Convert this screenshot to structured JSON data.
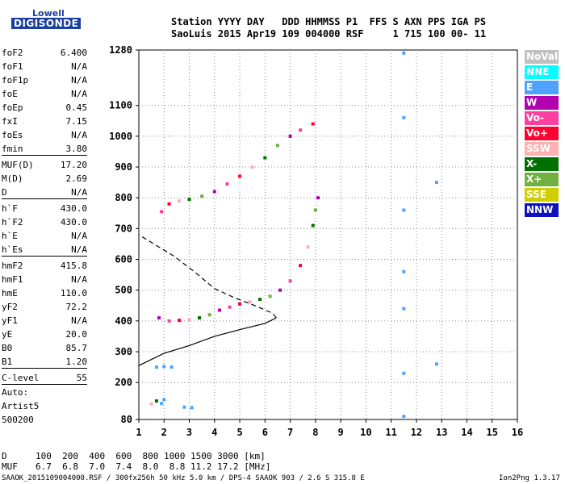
{
  "logo": {
    "line1": "Lowell",
    "line2": "DIGISONDE"
  },
  "header": {
    "line1": "Station YYYY DAY   DDD HHMMSS P1  FFS S AXN PPS IGA PS",
    "line2": "SaoLuis 2015 Apr19 109 004000 RSF     1 715 100 00- 11"
  },
  "params": [
    {
      "name": "foF2",
      "value": "6.400"
    },
    {
      "name": "foF1",
      "value": "N/A"
    },
    {
      "name": "foF1p",
      "value": "N/A"
    },
    {
      "name": "foE",
      "value": "N/A"
    },
    {
      "name": "foEp",
      "value": "0.45"
    },
    {
      "name": "fxI",
      "value": "7.15"
    },
    {
      "name": "foEs",
      "value": "N/A"
    },
    {
      "name": "fmin",
      "value": "3.80"
    },
    {
      "name": "MUF(D)",
      "value": "17.20"
    },
    {
      "name": "M(D)",
      "value": "2.69"
    },
    {
      "name": "D",
      "value": "N/A"
    },
    {
      "name": "h`F",
      "value": "430.0"
    },
    {
      "name": "h`F2",
      "value": "430.0"
    },
    {
      "name": "h`E",
      "value": "N/A"
    },
    {
      "name": "h`Es",
      "value": "N/A"
    },
    {
      "name": "hmF2",
      "value": "415.8"
    },
    {
      "name": "hmF1",
      "value": "N/A"
    },
    {
      "name": "hmE",
      "value": "110.0"
    },
    {
      "name": "yF2",
      "value": "72.2"
    },
    {
      "name": "yF1",
      "value": "N/A"
    },
    {
      "name": "yE",
      "value": "20.0"
    },
    {
      "name": "B0",
      "value": "85.7"
    },
    {
      "name": "B1",
      "value": "1.20"
    },
    {
      "name": "C-level",
      "value": "55"
    }
  ],
  "auto": {
    "line1": "Auto:",
    "line2": "Artist5",
    "line3": "500200"
  },
  "muf_table": {
    "d_label": "D",
    "d_values": "100  200  400  600  800 1000 1500 3000 [km]",
    "muf_label": "MUF",
    "muf_values": "6.7  6.8  7.0  7.4  8.0  8.8 11.2 17.2 [MHz]"
  },
  "footer": {
    "left": "SAAOK_2015109004000.RSF / 300fx256h 50 kHz 5.0 km / DPS-4 SAAOK 903 / 2.6 S 315.8 E",
    "right": "Ion2Png 1.3.17"
  },
  "legend": [
    {
      "label": "NoVal",
      "color": "#c0c0c0"
    },
    {
      "label": "NNE",
      "color": "#00ffff"
    },
    {
      "label": "E",
      "color": "#4fa3ff"
    },
    {
      "label": "W",
      "color": "#b000b0"
    },
    {
      "label": "Vo-",
      "color": "#ff3fa0"
    },
    {
      "label": "Vo+",
      "color": "#ff0030"
    },
    {
      "label": "SSW",
      "color": "#ffb0b0"
    },
    {
      "label": "X-",
      "color": "#007000"
    },
    {
      "label": "X+",
      "color": "#70b040"
    },
    {
      "label": "SSE",
      "color": "#d0d000"
    },
    {
      "label": "NNW",
      "color": "#1010c0"
    }
  ],
  "chart_data": {
    "type": "scatter",
    "title": "",
    "xlabel": "",
    "ylabel": "",
    "xlim": [
      1,
      16
    ],
    "ylim": [
      80,
      1280
    ],
    "x_ticks": [
      1,
      2,
      3,
      4,
      5,
      6,
      7,
      8,
      9,
      10,
      11,
      12,
      13,
      14,
      15,
      16
    ],
    "y_ticks": [
      80,
      200,
      300,
      400,
      500,
      600,
      700,
      800,
      900,
      1000,
      1100,
      1280
    ],
    "grid": "dotted",
    "series": [
      {
        "kind": "traces",
        "points": [
          [
            1.8,
            410
          ],
          [
            2.2,
            400
          ],
          [
            2.6,
            402
          ],
          [
            3.0,
            405
          ],
          [
            3.4,
            410
          ],
          [
            3.8,
            420
          ],
          [
            4.2,
            435
          ],
          [
            4.6,
            445
          ],
          [
            5.0,
            455
          ],
          [
            5.4,
            462
          ],
          [
            5.8,
            470
          ],
          [
            6.2,
            480
          ],
          [
            6.6,
            500
          ],
          [
            7.0,
            530
          ],
          [
            7.4,
            580
          ],
          [
            7.7,
            640
          ],
          [
            7.9,
            710
          ],
          [
            8.0,
            760
          ],
          [
            8.1,
            800
          ],
          [
            1.9,
            755
          ],
          [
            2.2,
            780
          ],
          [
            2.6,
            790
          ],
          [
            3.0,
            795
          ],
          [
            3.5,
            805
          ],
          [
            4.0,
            820
          ],
          [
            4.5,
            845
          ],
          [
            5.0,
            870
          ],
          [
            5.5,
            900
          ],
          [
            6.0,
            930
          ],
          [
            6.5,
            970
          ],
          [
            7.0,
            1000
          ],
          [
            7.4,
            1020
          ],
          [
            7.9,
            1040
          ],
          [
            1.5,
            130
          ],
          [
            1.7,
            140
          ],
          [
            1.9,
            132
          ],
          [
            2.0,
            145
          ],
          [
            1.7,
            250
          ],
          [
            2.0,
            252
          ],
          [
            2.3,
            250
          ],
          [
            2.8,
            120
          ],
          [
            3.1,
            118
          ],
          [
            11.5,
            90
          ],
          [
            11.5,
            230
          ],
          [
            11.5,
            440
          ],
          [
            11.5,
            560
          ],
          [
            11.5,
            760
          ],
          [
            11.5,
            1060
          ],
          [
            11.5,
            1270
          ],
          [
            12.8,
            850
          ],
          [
            12.8,
            260
          ]
        ]
      },
      {
        "kind": "profile_line",
        "points": [
          [
            1,
            255
          ],
          [
            2,
            295
          ],
          [
            3,
            320
          ],
          [
            4,
            350
          ],
          [
            5,
            372
          ],
          [
            6,
            392
          ],
          [
            6.45,
            410
          ],
          [
            6.3,
            425
          ],
          [
            5.6,
            450
          ],
          [
            4.8,
            475
          ],
          [
            4.0,
            505
          ],
          [
            3.2,
            560
          ],
          [
            2.4,
            610
          ],
          [
            1.6,
            650
          ],
          [
            1,
            680
          ]
        ]
      }
    ]
  }
}
